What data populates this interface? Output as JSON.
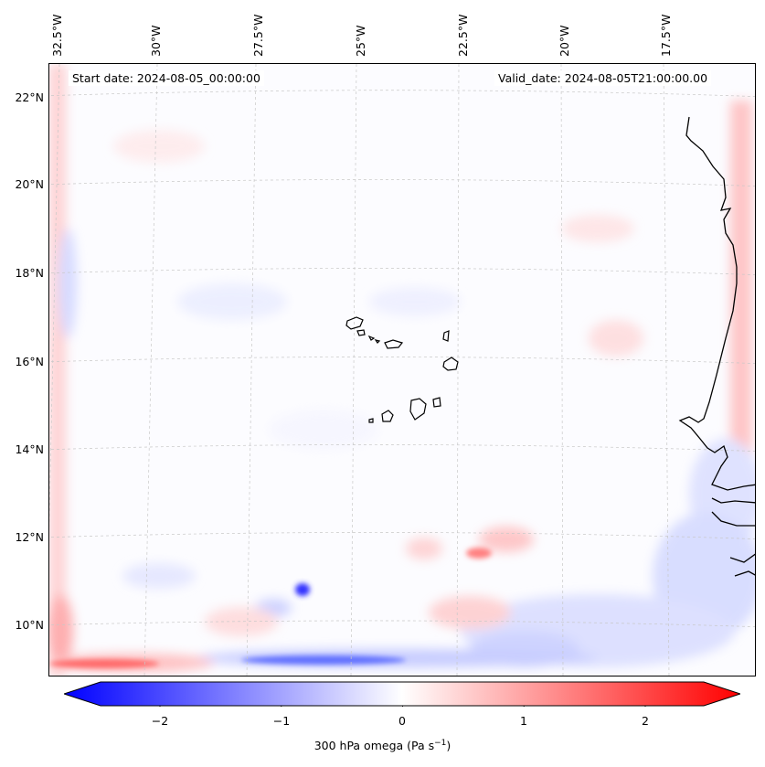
{
  "map": {
    "start_label": "Start date: 2024-08-05_00:00:00",
    "valid_label": "Valid_date: 2024-08-05T21:00:00.00",
    "lon_labels": [
      "32.5°W",
      "30°W",
      "27.5°W",
      "25°W",
      "22.5°W",
      "20°W",
      "17.5°W"
    ],
    "lat_labels": [
      "22°N",
      "20°N",
      "18°N",
      "16°N",
      "14°N",
      "12°N",
      "10°N"
    ],
    "colors": {
      "positive": "#ff0000",
      "negative": "#0000ff",
      "neutral": "#ffffff",
      "coast": "#000000",
      "grid": "#bbbbbb"
    }
  },
  "colorbar": {
    "title": "300 hPa omega (Pa s",
    "title_sup": "−1",
    "title_end": ")",
    "range": [
      -2.75,
      2.75
    ],
    "tick_values": [
      -2,
      -1,
      0,
      1,
      2
    ],
    "tick_labels": [
      "−2",
      "−1",
      "0",
      "1",
      "2"
    ]
  }
}
